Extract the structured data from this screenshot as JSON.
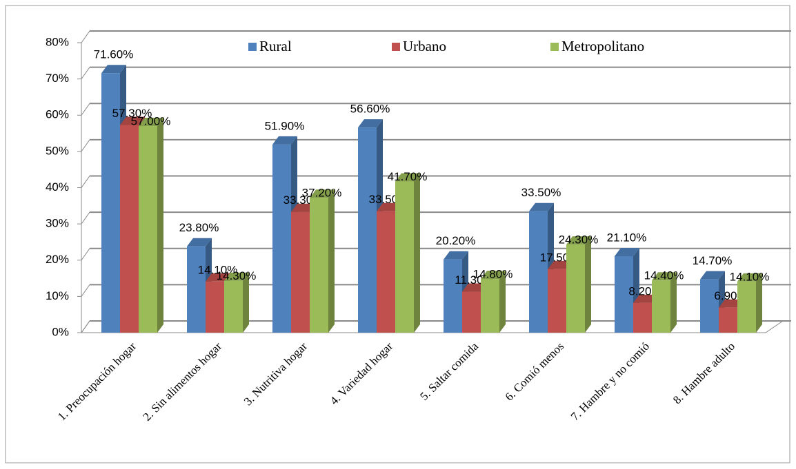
{
  "chart_data": {
    "type": "bar3d",
    "categories": [
      "1. Preocupación hogar",
      "2. Sin alimentos hogar",
      "3. Nutritiva hogar",
      "4. Variedad hogar",
      "5. Saltar  comida",
      "6. Comió menos",
      "7. Hambre y no comió",
      "8. Hambre adulto"
    ],
    "series": [
      {
        "name": "Rural",
        "color": "#4f81bd",
        "values": [
          71.6,
          23.8,
          51.9,
          56.6,
          20.2,
          33.5,
          21.1,
          14.7
        ],
        "value_labels": [
          "71.60%",
          "23.80%",
          "51.90%",
          "56.60%",
          "20.20%",
          "33.50%",
          "21.10%",
          "14.70%"
        ]
      },
      {
        "name": "Urbano",
        "color": "#c0504d",
        "values": [
          57.3,
          14.1,
          33.3,
          33.5,
          11.3,
          17.5,
          8.2,
          6.9
        ],
        "value_labels": [
          "57.30%",
          "14.10%",
          "33.30%",
          "33.50%",
          "11.30%",
          "17.50%",
          "8.20%",
          "6.90%"
        ]
      },
      {
        "name": "Metropolitano",
        "color": "#9bbb59",
        "values": [
          57.0,
          14.3,
          37.2,
          41.7,
          14.8,
          24.3,
          14.4,
          14.1
        ],
        "value_labels": [
          "57.00%",
          "14.30%",
          "37.20%",
          "41.70%",
          "14.80%",
          "24.30%",
          "14.40%",
          "14.10%"
        ]
      }
    ],
    "ylim": [
      0,
      80
    ],
    "yticks": [
      {
        "value": 0,
        "label": "0%"
      },
      {
        "value": 10,
        "label": "10%"
      },
      {
        "value": 20,
        "label": "20%"
      },
      {
        "value": 30,
        "label": "30%"
      },
      {
        "value": 40,
        "label": "40%"
      },
      {
        "value": 50,
        "label": "50%"
      },
      {
        "value": 60,
        "label": "60%"
      },
      {
        "value": 70,
        "label": "70%"
      },
      {
        "value": 80,
        "label": "80%"
      }
    ],
    "grid": true,
    "legend": "top"
  }
}
